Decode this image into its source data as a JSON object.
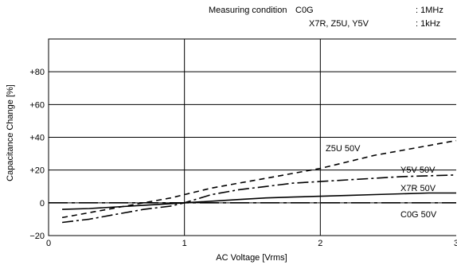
{
  "chart_data": {
    "type": "line",
    "title": "",
    "xlabel": "AC Voltage [Vrms]",
    "ylabel": "Capacitance Change [%]",
    "xlim": [
      0,
      3
    ],
    "ylim": [
      -20,
      100
    ],
    "x_ticks": [
      "0",
      "1",
      "2",
      "3"
    ],
    "y_ticks": [
      "−20",
      "0",
      "+20",
      "+40",
      "+60",
      "+80"
    ],
    "y_tick_values": [
      -20,
      0,
      20,
      40,
      60,
      80
    ],
    "grid": true,
    "measuring_condition": {
      "heading": "Measuring condition",
      "rows": [
        {
          "types": "C0G",
          "value": ": 1MHz"
        },
        {
          "types": "X7R, Z5U, Y5V",
          "value": ": 1kHz"
        }
      ]
    },
    "series": [
      {
        "name": "Z5U 50V",
        "style": "dashed",
        "color": "#000000",
        "x": [
          0.1,
          0.3,
          0.5,
          0.7,
          0.9,
          1.0,
          1.2,
          1.4,
          1.6,
          1.8,
          2.0,
          2.2,
          2.4,
          2.6,
          2.8,
          3.0
        ],
        "y": [
          -9,
          -6,
          -3,
          0,
          3,
          5,
          9,
          12,
          15,
          18,
          21,
          25,
          29,
          32,
          35,
          38
        ]
      },
      {
        "name": "Y5V 50V",
        "style": "dash-dot",
        "color": "#000000",
        "x": [
          0.1,
          0.3,
          0.5,
          0.7,
          0.9,
          1.0,
          1.2,
          1.4,
          1.6,
          1.8,
          2.0,
          2.2,
          2.4,
          2.6,
          2.8,
          3.0
        ],
        "y": [
          -12,
          -10,
          -7,
          -4,
          -2,
          0,
          5,
          8,
          10,
          12,
          13,
          14,
          15,
          16,
          16.5,
          17
        ]
      },
      {
        "name": "X7R 50V",
        "style": "solid",
        "color": "#000000",
        "x": [
          0.1,
          0.3,
          0.5,
          0.7,
          0.9,
          1.0,
          1.2,
          1.4,
          1.6,
          1.8,
          2.0,
          2.2,
          2.4,
          2.6,
          2.8,
          3.0
        ],
        "y": [
          -4,
          -3.5,
          -2.5,
          -1.5,
          -0.5,
          0,
          1,
          2,
          3,
          3.5,
          4,
          4.5,
          5,
          5.5,
          6,
          6
        ]
      },
      {
        "name": "C0G 50V",
        "style": "long-dash-dot",
        "color": "#000000",
        "x": [
          0.0,
          3.0
        ],
        "y": [
          0,
          0
        ]
      }
    ]
  }
}
